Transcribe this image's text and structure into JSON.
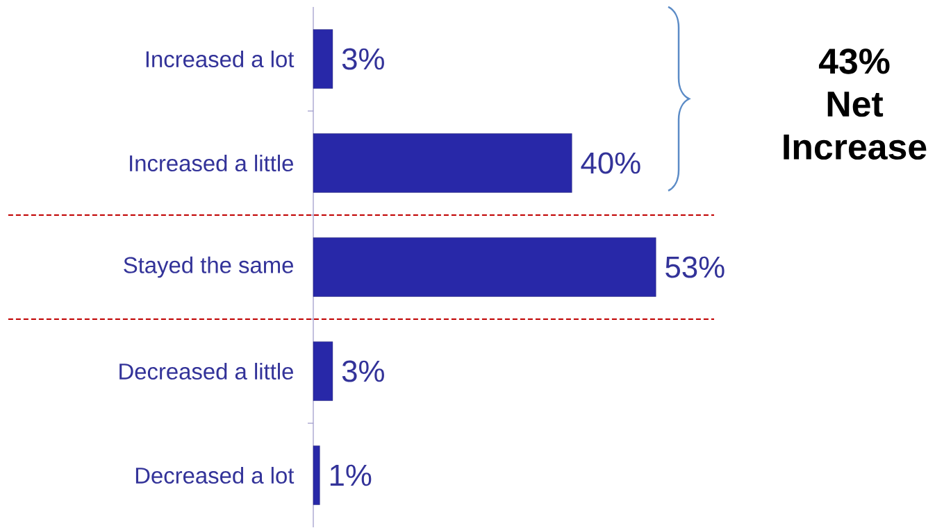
{
  "chart_data": {
    "type": "bar",
    "orientation": "horizontal",
    "categories": [
      "Increased a lot",
      "Increased a little",
      "Stayed the same",
      "Decreased a little",
      "Decreased a lot"
    ],
    "values": [
      3,
      40,
      53,
      3,
      1
    ],
    "value_labels": [
      "3%",
      "40%",
      "53%",
      "3%",
      "1%"
    ],
    "color": "#2828a8",
    "xlim": [
      0,
      62
    ],
    "tick_labels": "y",
    "annotations": [
      "43% Net Increase"
    ]
  }
}
